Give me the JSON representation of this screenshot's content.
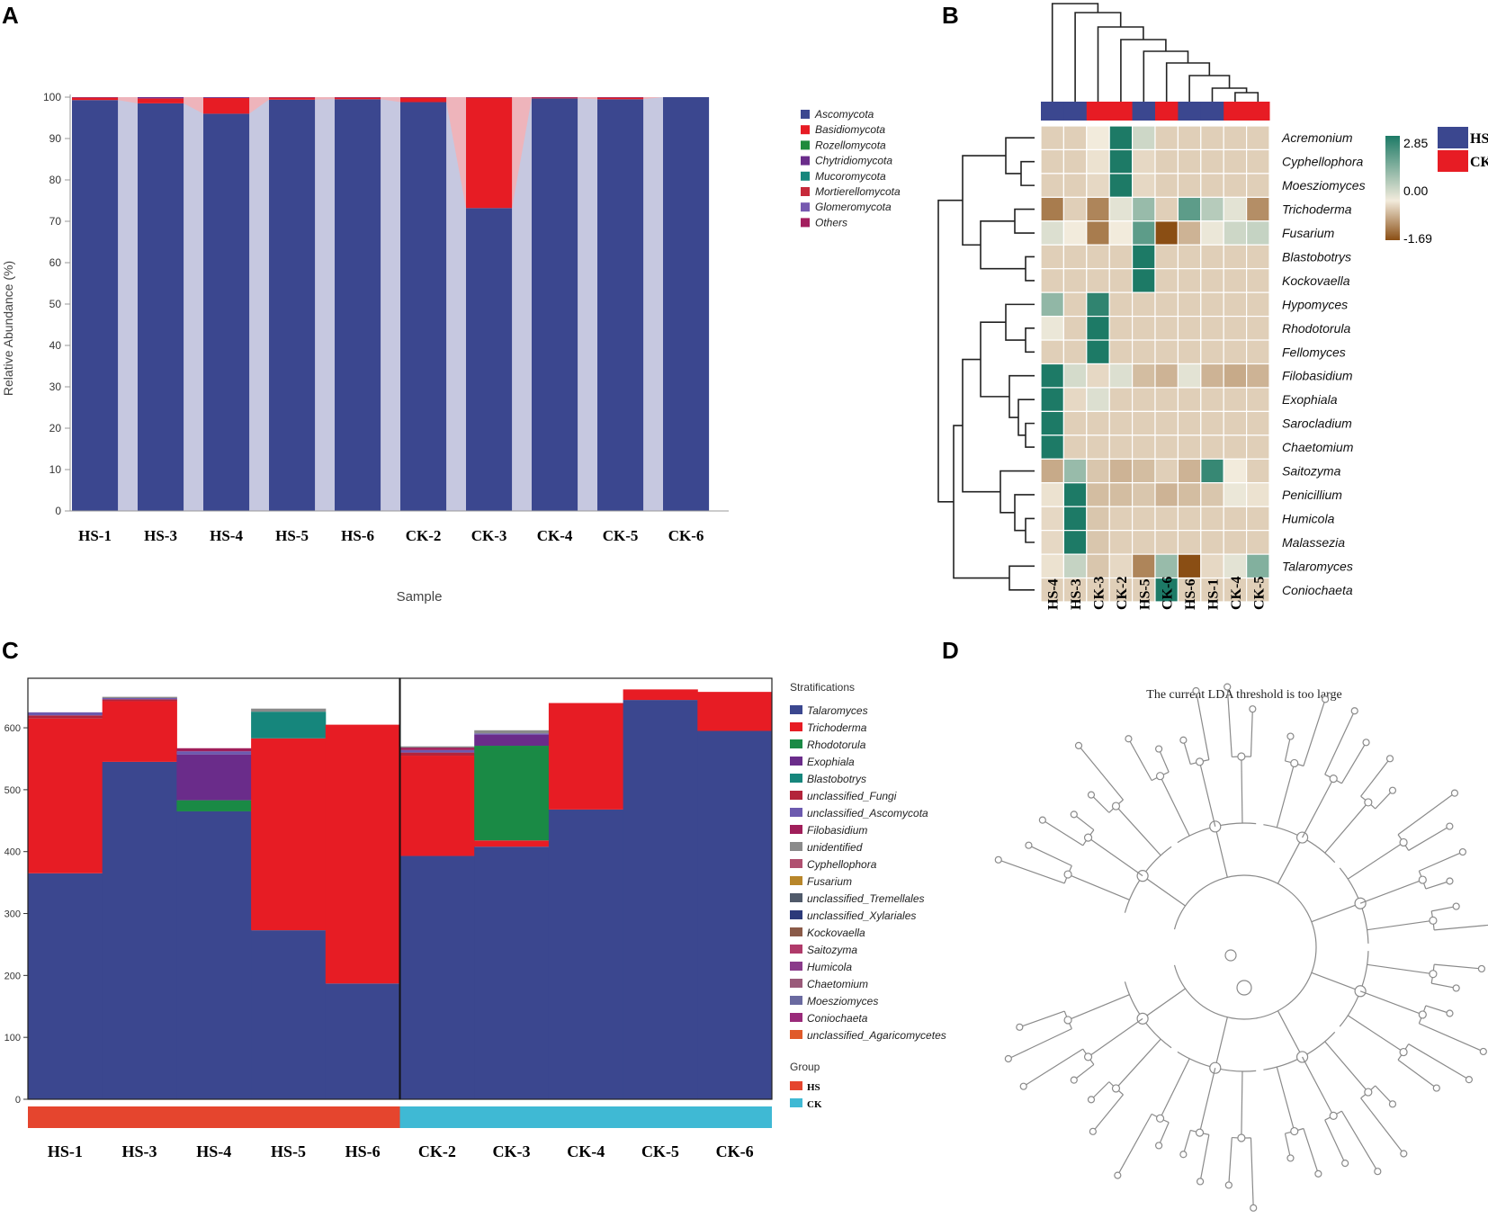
{
  "colors": {
    "ascomycota": "#3b478f",
    "basidiomycota": "#e71c24",
    "rozellomycota": "#1f8a3b",
    "chytridiomycota": "#6a2c8a",
    "mucoromycota": "#16867c",
    "mortierellomycota": "#c62a3a",
    "glomeromycota": "#7659b0",
    "others": "#a31e5e",
    "gap": "#c6c8e0",
    "hs": "#3b478f",
    "ck": "#e71c24",
    "hm_pos": "#1d7a66",
    "hm_mid": "#f2ebdc",
    "hm_neg": "#8a4e14",
    "group_hs": "#e5452e",
    "group_ck": "#3fb9d4"
  },
  "panels": {
    "a": "A",
    "b": "B",
    "c": "C",
    "d": "D"
  },
  "chart_data": [
    {
      "type": "bar",
      "stacked": true,
      "panel": "A",
      "categories": [
        "HS-1",
        "HS-3",
        "HS-4",
        "HS-5",
        "HS-6",
        "CK-2",
        "CK-3",
        "CK-4",
        "CK-5",
        "CK-6"
      ],
      "xlabel": "Sample",
      "ylabel": "Relative Abundance (%)",
      "ylim": [
        0,
        100
      ],
      "yticks": [
        0,
        10,
        20,
        30,
        40,
        50,
        60,
        70,
        80,
        90,
        100
      ],
      "series": [
        {
          "name": "Ascomycota",
          "values": [
            99.3,
            98.5,
            96.0,
            99.4,
            99.5,
            98.8,
            73.2,
            99.7,
            99.5,
            100.0
          ]
        },
        {
          "name": "Basidiomycota",
          "values": [
            0.6,
            1.2,
            3.8,
            0.5,
            0.4,
            1.1,
            26.7,
            0.2,
            0.4,
            0.0
          ]
        },
        {
          "name": "Rozellomycota",
          "values": [
            0,
            0,
            0,
            0,
            0,
            0,
            0,
            0,
            0,
            0
          ]
        },
        {
          "name": "Chytridiomycota",
          "values": [
            0.1,
            0.3,
            0.2,
            0.1,
            0.1,
            0.1,
            0.1,
            0.1,
            0.1,
            0
          ]
        },
        {
          "name": "Mucoromycota",
          "values": [
            0,
            0,
            0,
            0,
            0,
            0,
            0,
            0,
            0,
            0
          ]
        },
        {
          "name": "Mortierellomycota",
          "values": [
            0,
            0,
            0,
            0,
            0,
            0,
            0,
            0,
            0,
            0
          ]
        },
        {
          "name": "Glomeromycota",
          "values": [
            0,
            0,
            0,
            0,
            0,
            0,
            0,
            0,
            0,
            0
          ]
        },
        {
          "name": "Others",
          "values": [
            0,
            0,
            0,
            0,
            0,
            0,
            0,
            0,
            0,
            0
          ]
        }
      ],
      "legend": [
        "Ascomycota",
        "Basidiomycota",
        "Rozellomycota",
        "Chytridiomycota",
        "Mucoromycota",
        "Mortierellomycota",
        "Glomeromycota",
        "Others"
      ]
    },
    {
      "type": "heatmap",
      "panel": "B",
      "columns": [
        "HS-4",
        "HS-3",
        "CK-3",
        "CK-2",
        "HS-5",
        "CK-6",
        "HS-6",
        "HS-1",
        "CK-4",
        "CK-5"
      ],
      "column_groups": [
        "HS",
        "HS",
        "CK",
        "CK",
        "HS",
        "CK",
        "HS",
        "HS",
        "CK",
        "CK"
      ],
      "rows": [
        "Acremonium",
        "Cyphellophora",
        "Moesziomyces",
        "Trichoderma",
        "Fusarium",
        "Blastobotrys",
        "Kockovaella",
        "Hypomyces",
        "Rhodotorula",
        "Fellomyces",
        "Filobasidium",
        "Exophiala",
        "Sarocladium",
        "Chaetomium",
        "Saitozyma",
        "Penicillium",
        "Humicola",
        "Malassezia",
        "Talaromyces",
        "Coniochaeta"
      ],
      "values": [
        [
          -0.3,
          -0.3,
          0.0,
          2.85,
          0.5,
          -0.3,
          -0.3,
          -0.3,
          -0.3,
          -0.3
        ],
        [
          -0.3,
          -0.3,
          -0.1,
          2.85,
          -0.2,
          -0.3,
          -0.3,
          -0.3,
          -0.3,
          -0.3
        ],
        [
          -0.3,
          -0.3,
          -0.2,
          2.85,
          -0.2,
          -0.3,
          -0.3,
          -0.3,
          -0.3,
          -0.3
        ],
        [
          -1.2,
          -0.3,
          -1.1,
          0.2,
          1.2,
          -0.3,
          2.0,
          0.8,
          0.2,
          -1.0
        ],
        [
          0.3,
          0.0,
          -1.2,
          0.0,
          2.0,
          -1.69,
          -0.6,
          0.1,
          0.5,
          0.6
        ],
        [
          -0.3,
          -0.3,
          -0.3,
          -0.3,
          2.85,
          -0.3,
          -0.3,
          -0.3,
          -0.3,
          -0.3
        ],
        [
          -0.3,
          -0.3,
          -0.3,
          -0.3,
          2.85,
          -0.3,
          -0.3,
          -0.3,
          -0.3,
          -0.3
        ],
        [
          1.3,
          -0.3,
          2.6,
          -0.3,
          -0.3,
          -0.3,
          -0.3,
          -0.3,
          -0.3,
          -0.3
        ],
        [
          0.1,
          -0.3,
          2.85,
          -0.3,
          -0.3,
          -0.3,
          -0.3,
          -0.3,
          -0.3,
          -0.3
        ],
        [
          -0.3,
          -0.3,
          2.85,
          -0.3,
          -0.3,
          -0.3,
          -0.3,
          -0.3,
          -0.3,
          -0.3
        ],
        [
          2.85,
          0.4,
          -0.2,
          0.3,
          -0.5,
          -0.6,
          0.2,
          -0.6,
          -0.7,
          -0.6
        ],
        [
          2.85,
          -0.2,
          0.3,
          -0.3,
          -0.3,
          -0.3,
          -0.3,
          -0.3,
          -0.3,
          -0.3
        ],
        [
          2.85,
          -0.3,
          -0.3,
          -0.3,
          -0.3,
          -0.3,
          -0.3,
          -0.3,
          -0.3,
          -0.3
        ],
        [
          2.85,
          -0.3,
          -0.3,
          -0.3,
          -0.3,
          -0.3,
          -0.3,
          -0.3,
          -0.3,
          -0.3
        ],
        [
          -0.7,
          1.2,
          -0.4,
          -0.6,
          -0.5,
          -0.3,
          -0.6,
          2.5,
          0.0,
          -0.3
        ],
        [
          -0.1,
          2.85,
          -0.5,
          -0.5,
          -0.4,
          -0.6,
          -0.5,
          -0.4,
          0.1,
          -0.1
        ],
        [
          -0.2,
          2.85,
          -0.4,
          -0.3,
          -0.3,
          -0.3,
          -0.3,
          -0.3,
          -0.3,
          -0.3
        ],
        [
          -0.2,
          2.85,
          -0.4,
          -0.3,
          -0.3,
          -0.3,
          -0.3,
          -0.3,
          -0.3,
          -0.3
        ],
        [
          -0.1,
          0.6,
          -0.4,
          -0.2,
          -1.1,
          1.2,
          -1.69,
          -0.2,
          0.2,
          1.5
        ],
        [
          -0.3,
          -0.3,
          -0.3,
          -0.3,
          -0.3,
          2.85,
          -0.3,
          -0.3,
          -0.3,
          -0.3
        ]
      ],
      "scale": {
        "max": "2.85",
        "mid": "0.00",
        "min": "-1.69"
      },
      "legend": [
        "HS",
        "CK"
      ]
    },
    {
      "type": "bar",
      "stacked": true,
      "panel": "C",
      "categories": [
        "HS-1",
        "HS-3",
        "HS-4",
        "HS-5",
        "HS-6",
        "CK-2",
        "CK-3",
        "CK-4",
        "CK-5",
        "CK-6"
      ],
      "ylim": [
        0,
        680
      ],
      "yticks": [
        0,
        100,
        200,
        300,
        400,
        500,
        600
      ],
      "series": [
        {
          "name": "Talaromyces",
          "values": [
            365,
            545,
            465,
            273,
            187,
            393,
            408,
            468,
            645,
            595
          ]
        },
        {
          "name": "Trichoderma",
          "values": [
            250,
            98,
            0,
            310,
            418,
            162,
            10,
            172,
            17,
            63
          ]
        },
        {
          "name": "Rhodotorula",
          "values": [
            0,
            0,
            18,
            0,
            0,
            0,
            153,
            0,
            0,
            0
          ]
        },
        {
          "name": "Exophiala",
          "values": [
            0,
            0,
            74,
            0,
            0,
            0,
            18,
            0,
            0,
            0
          ]
        },
        {
          "name": "Blastobotrys",
          "values": [
            0,
            0,
            0,
            43,
            0,
            0,
            0,
            0,
            0,
            0
          ]
        },
        {
          "name": "unclassified_Fungi",
          "values": [
            5,
            3,
            0,
            0,
            0,
            5,
            0,
            0,
            0,
            0
          ]
        },
        {
          "name": "unclassified_Ascomycota",
          "values": [
            5,
            2,
            5,
            0,
            0,
            4,
            2,
            0,
            0,
            0
          ]
        },
        {
          "name": "Filobasidium",
          "values": [
            0,
            0,
            5,
            0,
            0,
            4,
            0,
            0,
            0,
            0
          ]
        },
        {
          "name": "unidentified",
          "values": [
            0,
            2,
            0,
            5,
            0,
            2,
            5,
            0,
            0,
            0
          ]
        }
      ],
      "legend_title": "Stratifications",
      "legend": [
        "Talaromyces",
        "Trichoderma",
        "Rhodotorula",
        "Exophiala",
        "Blastobotrys",
        "unclassified_Fungi",
        "unclassified_Ascomycota",
        "Filobasidium",
        "unidentified",
        "Cyphellophora",
        "Fusarium",
        "unclassified_Tremellales",
        "unclassified_Xylariales",
        "Kockovaella",
        "Saitozyma",
        "Humicola",
        "Chaetomium",
        "Moesziomyces",
        "Coniochaeta",
        "unclassified_Agaricomycetes"
      ],
      "group_title": "Group",
      "groups": [
        "HS",
        "CK"
      ]
    }
  ],
  "panel_d": {
    "message": "The current LDA threshold is too large"
  }
}
